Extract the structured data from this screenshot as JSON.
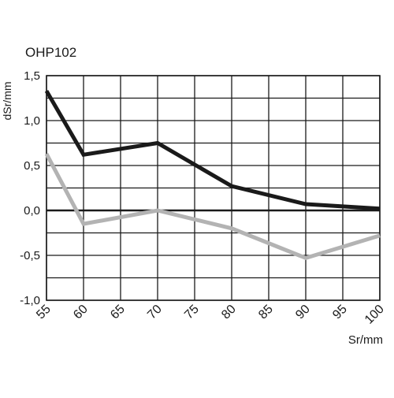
{
  "chart_data": {
    "type": "line",
    "title": "OHP102",
    "ylabel": "dSr/mm",
    "xlabel": "Sr/mm",
    "xlim": [
      55,
      100
    ],
    "ylim": [
      -1.0,
      1.5
    ],
    "x_ticks": [
      "55",
      "60",
      "65",
      "70",
      "75",
      "80",
      "85",
      "90",
      "95",
      "100"
    ],
    "y_ticks": [
      "1,5",
      "1,0",
      "0,5",
      "0,0",
      "-0,5",
      "-1,0"
    ],
    "grid": true,
    "legend": "none",
    "series": [
      {
        "color": "#1a1a1a",
        "points": [
          [
            55,
            1.33
          ],
          [
            60,
            0.62
          ],
          [
            70,
            0.75
          ],
          [
            80,
            0.27
          ],
          [
            90,
            0.07
          ],
          [
            100,
            0.02
          ]
        ]
      },
      {
        "color": "#b3b3b3",
        "points": [
          [
            55,
            0.63
          ],
          [
            60,
            -0.15
          ],
          [
            70,
            0.0
          ],
          [
            80,
            -0.2
          ],
          [
            90,
            -0.53
          ],
          [
            100,
            -0.28
          ]
        ]
      }
    ],
    "zero_line_color": "#1a1a1a"
  }
}
